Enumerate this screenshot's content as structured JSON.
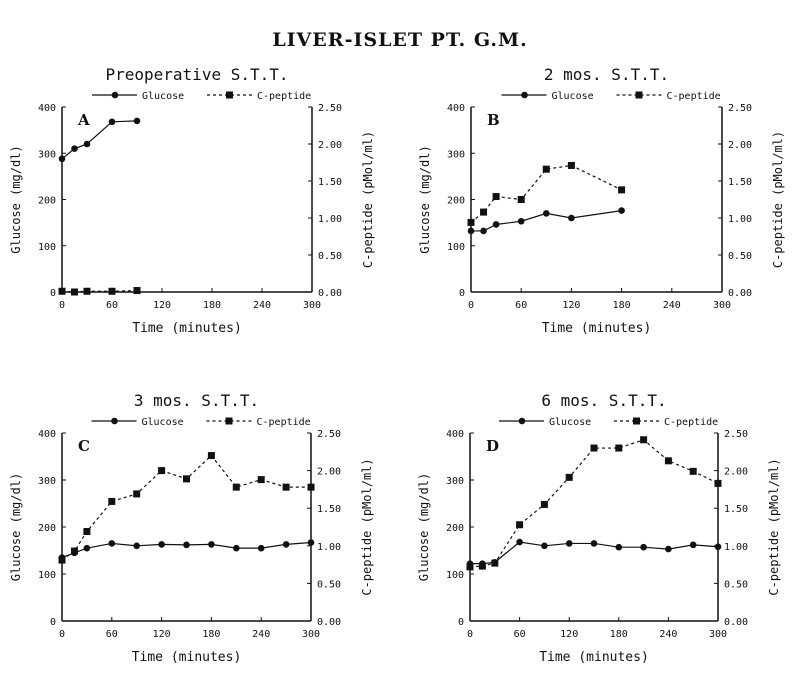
{
  "title": "LIVER-ISLET PT. G.M.",
  "chart_data": [
    {
      "type": "line",
      "panel": "A",
      "title": "Preoperative S.T.T.",
      "xlabel": "Time (minutes)",
      "ylabel": "Glucose (mg/dl)",
      "y2label": "C-peptide (pMol/ml)",
      "legend": [
        "Glucose",
        "C-peptide"
      ],
      "xlim": [
        0,
        300
      ],
      "ylim": [
        0,
        400
      ],
      "y2lim": [
        0,
        2.5
      ],
      "xticks": [
        "0",
        "60",
        "120",
        "180",
        "240",
        "300"
      ],
      "yticks": [
        "0",
        "100",
        "200",
        "300",
        "400"
      ],
      "y2ticks": [
        "0.00",
        "0.50",
        "1.00",
        "1.50",
        "2.00",
        "2.50"
      ],
      "series": [
        {
          "name": "Glucose",
          "x": [
            0,
            15,
            30,
            60,
            90
          ],
          "values": [
            288,
            310,
            320,
            368,
            370
          ]
        },
        {
          "name": "C-peptide",
          "x": [
            0,
            15,
            30,
            60,
            90
          ],
          "values": [
            0.01,
            0.0,
            0.01,
            0.01,
            0.02
          ]
        }
      ]
    },
    {
      "type": "line",
      "panel": "B",
      "title": "2 mos. S.T.T.",
      "xlabel": "Time (minutes)",
      "ylabel": "Glucose (mg/dl)",
      "y2label": "C-peptide (pMol/ml)",
      "legend": [
        "Glucose",
        "C-peptide"
      ],
      "xlim": [
        0,
        300
      ],
      "ylim": [
        0,
        400
      ],
      "y2lim": [
        0,
        2.5
      ],
      "xticks": [
        "0",
        "60",
        "120",
        "180",
        "240",
        "300"
      ],
      "yticks": [
        "0",
        "100",
        "200",
        "300",
        "400"
      ],
      "y2ticks": [
        "0.00",
        "0.50",
        "1.00",
        "1.50",
        "2.00",
        "2.50"
      ],
      "series": [
        {
          "name": "Glucose",
          "x": [
            0,
            15,
            30,
            60,
            90,
            120,
            180
          ],
          "values": [
            132,
            132,
            146,
            153,
            170,
            160,
            176
          ]
        },
        {
          "name": "C-peptide",
          "x": [
            0,
            15,
            30,
            60,
            90,
            120,
            180
          ],
          "values": [
            0.94,
            1.08,
            1.29,
            1.25,
            1.66,
            1.71,
            1.38
          ]
        }
      ]
    },
    {
      "type": "line",
      "panel": "C",
      "title": "3 mos. S.T.T.",
      "xlabel": "Time (minutes)",
      "ylabel": "Glucose (mg/dl)",
      "y2label": "C-peptide (pMol/ml)",
      "legend": [
        "Glucose",
        "C-peptide"
      ],
      "xlim": [
        0,
        300
      ],
      "ylim": [
        0,
        400
      ],
      "y2lim": [
        0,
        2.5
      ],
      "xticks": [
        "0",
        "60",
        "120",
        "180",
        "240",
        "300"
      ],
      "yticks": [
        "0",
        "100",
        "200",
        "300",
        "400"
      ],
      "y2ticks": [
        "0.00",
        "0.50",
        "1.00",
        "1.50",
        "2.00",
        "2.50"
      ],
      "series": [
        {
          "name": "Glucose",
          "x": [
            0,
            15,
            30,
            60,
            90,
            120,
            150,
            180,
            210,
            240,
            270,
            300
          ],
          "values": [
            135,
            145,
            155,
            165,
            160,
            163,
            162,
            163,
            155,
            155,
            163,
            167
          ]
        },
        {
          "name": "C-peptide",
          "x": [
            0,
            15,
            30,
            60,
            90,
            120,
            150,
            180,
            210,
            240,
            270,
            300
          ],
          "values": [
            0.81,
            0.93,
            1.19,
            1.59,
            1.69,
            2.0,
            1.89,
            2.2,
            1.78,
            1.88,
            1.78,
            1.78
          ]
        }
      ]
    },
    {
      "type": "line",
      "panel": "D",
      "title": "6 mos. S.T.T.",
      "xlabel": "Time (minutes)",
      "ylabel": "Glucose (mg/dl)",
      "y2label": "C-peptide (pMol/ml)",
      "legend": [
        "Glucose",
        "C-peptide"
      ],
      "xlim": [
        0,
        300
      ],
      "ylim": [
        0,
        400
      ],
      "y2lim": [
        0,
        2.5
      ],
      "xticks": [
        "0",
        "60",
        "120",
        "180",
        "240",
        "300"
      ],
      "yticks": [
        "0",
        "100",
        "200",
        "300",
        "400"
      ],
      "y2ticks": [
        "0.00",
        "0.50",
        "1.00",
        "1.50",
        "2.00",
        "2.50"
      ],
      "series": [
        {
          "name": "Glucose",
          "x": [
            0,
            15,
            30,
            60,
            90,
            120,
            150,
            180,
            210,
            240,
            270,
            300
          ],
          "values": [
            122,
            122,
            125,
            168,
            160,
            165,
            165,
            157,
            157,
            153,
            162,
            158
          ]
        },
        {
          "name": "C-peptide",
          "x": [
            0,
            15,
            30,
            60,
            90,
            120,
            150,
            180,
            210,
            240,
            270,
            300
          ],
          "values": [
            0.72,
            0.73,
            0.77,
            1.28,
            1.55,
            1.91,
            2.3,
            2.3,
            2.41,
            2.13,
            1.99,
            1.83
          ]
        }
      ]
    }
  ]
}
